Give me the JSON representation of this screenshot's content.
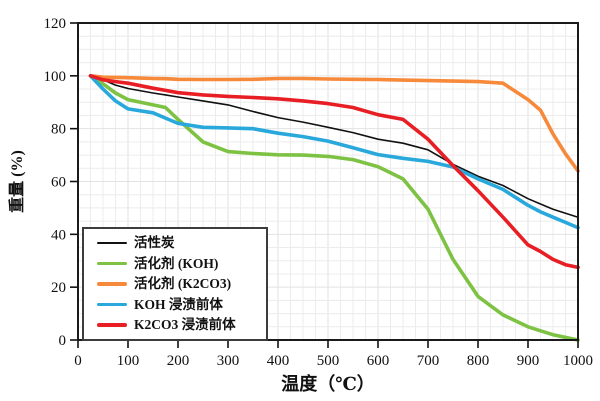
{
  "figure": {
    "background_color": "#ffffff",
    "plot_border_color": "#1a1a1a",
    "grid_minor_color": "#ececec",
    "grid_major_color": "#e2e2e2"
  },
  "chart_data": {
    "type": "line",
    "title": "",
    "xlabel": "温度（℃）",
    "ylabel": "重量 (%)",
    "xlim": [
      0,
      1000
    ],
    "ylim": [
      0,
      120
    ],
    "x_ticks": [
      0,
      100,
      200,
      300,
      400,
      500,
      600,
      700,
      800,
      900,
      1000
    ],
    "y_ticks": [
      0,
      20,
      40,
      60,
      80,
      100,
      120
    ],
    "grid": {
      "visible": true,
      "x_minor_step": 25,
      "y_minor_step": 5
    },
    "legend_position": "inside lower-left",
    "x": [
      25,
      50,
      75,
      100,
      150,
      175,
      200,
      250,
      300,
      350,
      400,
      450,
      500,
      550,
      600,
      650,
      700,
      750,
      800,
      850,
      900,
      925,
      950,
      975,
      1000
    ],
    "series": [
      {
        "name": "活性炭",
        "color": "#111111",
        "line_width": 1.6,
        "values": [
          100,
          98.5,
          96.5,
          95.2,
          93.5,
          92.8,
          92,
          90.5,
          89,
          86.5,
          84.2,
          82.5,
          80.5,
          78.5,
          76,
          74.5,
          72,
          66.5,
          62,
          58.5,
          53.5,
          51.5,
          49.5,
          48,
          46.5
        ]
      },
      {
        "name": "活化剂 (KOH)",
        "color": "#7dc243",
        "line_width": 3.6,
        "values": [
          100,
          97,
          93.5,
          91,
          89,
          88,
          83.5,
          75,
          71.3,
          70.6,
          70.1,
          70,
          69.5,
          68.3,
          65.6,
          61,
          49.5,
          30.5,
          16.5,
          9.5,
          5,
          3.5,
          2,
          1,
          0
        ]
      },
      {
        "name": "活化剂 (K2CO3)",
        "color": "#f6893a",
        "line_width": 3.6,
        "values": [
          100,
          99.5,
          99.4,
          99.3,
          99,
          98.9,
          98.7,
          98.6,
          98.6,
          98.7,
          99,
          99,
          98.8,
          98.7,
          98.6,
          98.4,
          98.2,
          98,
          97.8,
          97.2,
          91,
          87,
          78,
          70.5,
          64
        ]
      },
      {
        "name": "KOH 浸渍前体",
        "color": "#29a8dc",
        "line_width": 3.6,
        "values": [
          100,
          95,
          90.5,
          87.5,
          86,
          84,
          82,
          80.5,
          80.3,
          80,
          78.3,
          77,
          75.3,
          72.8,
          70.2,
          68.8,
          67.6,
          65.5,
          61,
          57,
          51,
          48.5,
          46.5,
          44.5,
          42.5
        ]
      },
      {
        "name": "K2CO3 浸渍前体",
        "color": "#e81e25",
        "line_width": 3.6,
        "values": [
          100,
          98.5,
          97.8,
          97.2,
          95.3,
          94.5,
          93.6,
          92.8,
          92.2,
          91.8,
          91.3,
          90.5,
          89.5,
          88,
          85.3,
          83.5,
          76,
          66,
          56.5,
          46.5,
          36,
          33.5,
          30.5,
          28.5,
          27.5
        ]
      }
    ]
  }
}
